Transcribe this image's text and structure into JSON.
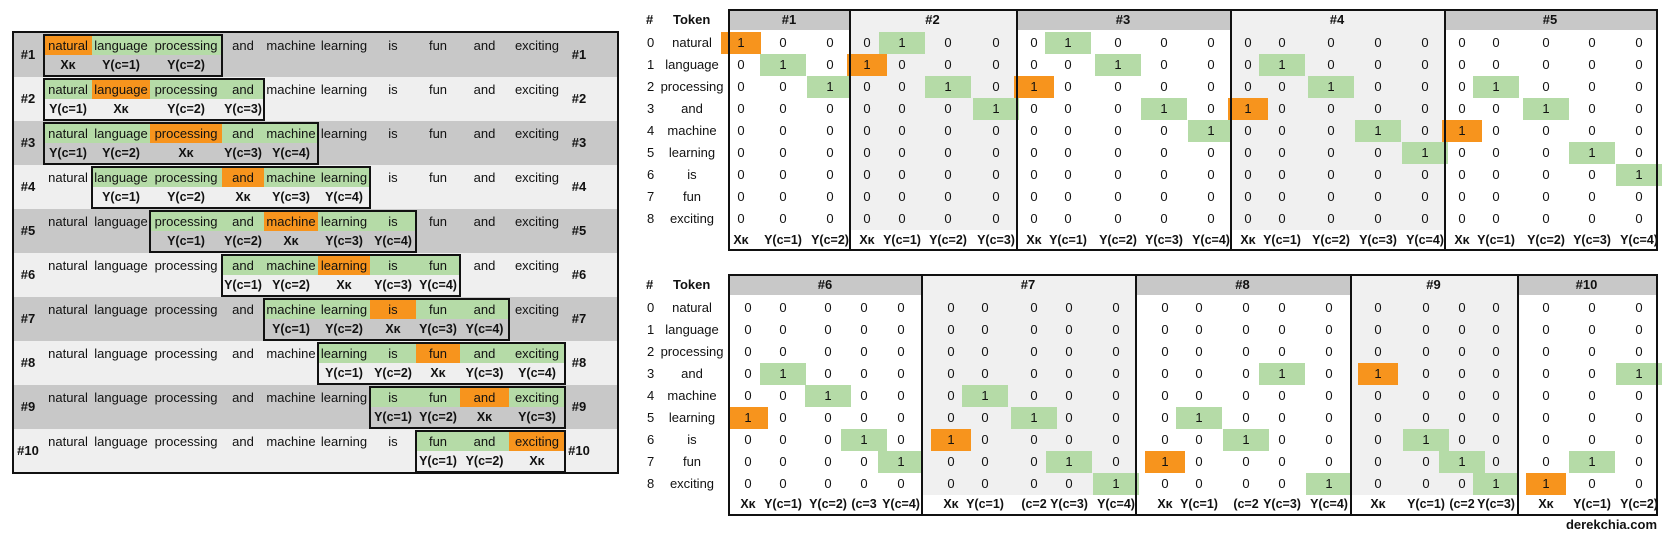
{
  "sentence": [
    "natural",
    "language",
    "processing",
    "and",
    "machine",
    "learning",
    "is",
    "fun",
    "and",
    "exciting"
  ],
  "windows": [
    {
      "id": "#1",
      "target": 0,
      "context": [
        1,
        2
      ],
      "labels": [
        "Xκ",
        "Y(c=1)",
        "Y(c=2)"
      ]
    },
    {
      "id": "#2",
      "target": 1,
      "context": [
        0,
        2,
        3
      ],
      "labels": [
        "Y(c=1)",
        "Xκ",
        "Y(c=2)",
        "Y(c=3)"
      ]
    },
    {
      "id": "#3",
      "target": 2,
      "context": [
        0,
        1,
        3,
        4
      ],
      "labels": [
        "Y(c=1)",
        "Y(c=2)",
        "Xκ",
        "Y(c=3)",
        "Y(c=4)"
      ]
    },
    {
      "id": "#4",
      "target": 3,
      "context": [
        1,
        2,
        4,
        5
      ],
      "labels": [
        "Y(c=1)",
        "Y(c=2)",
        "Xκ",
        "Y(c=3)",
        "Y(c=4)"
      ]
    },
    {
      "id": "#5",
      "target": 4,
      "context": [
        2,
        3,
        5,
        6
      ],
      "labels": [
        "Y(c=1)",
        "Y(c=2)",
        "Xκ",
        "Y(c=3)",
        "Y(c=4)"
      ]
    },
    {
      "id": "#6",
      "target": 5,
      "context": [
        3,
        4,
        6,
        7
      ],
      "labels": [
        "Y(c=1)",
        "Y(c=2)",
        "Xκ",
        "Y(c=3)",
        "Y(c=4)"
      ]
    },
    {
      "id": "#7",
      "target": 6,
      "context": [
        4,
        5,
        7,
        8
      ],
      "labels": [
        "Y(c=1)",
        "Y(c=2)",
        "Xκ",
        "Y(c=3)",
        "Y(c=4)"
      ]
    },
    {
      "id": "#8",
      "target": 7,
      "context": [
        5,
        6,
        8,
        9
      ],
      "labels": [
        "Y(c=1)",
        "Y(c=2)",
        "Xκ",
        "Y(c=3)",
        "Y(c=4)"
      ]
    },
    {
      "id": "#9",
      "target": 8,
      "context": [
        6,
        7,
        9
      ],
      "labels": [
        "Y(c=1)",
        "Y(c=2)",
        "Xκ",
        "Y(c=3)"
      ]
    },
    {
      "id": "#10",
      "target": 9,
      "context": [
        7,
        8
      ],
      "labels": [
        "Y(c=1)",
        "Y(c=2)",
        "Xκ"
      ]
    }
  ],
  "vocab": [
    "natural",
    "language",
    "processing",
    "and",
    "machine",
    "learning",
    "is",
    "fun",
    "exciting"
  ],
  "vocab_index": [
    "0",
    "1",
    "2",
    "3",
    "4",
    "5",
    "6",
    "7",
    "8"
  ],
  "matrix_headers": {
    "index": "#",
    "token": "Token"
  },
  "matrices": [
    {
      "id": "#1",
      "hot": [
        0,
        1,
        2
      ],
      "footers": [
        "Xκ",
        "Y(c=1)",
        "Y(c=2)"
      ]
    },
    {
      "id": "#2",
      "hot": [
        1,
        0,
        2,
        3
      ],
      "footers": [
        "Xκ",
        "Y(c=1)",
        "Y(c=2)",
        "Y(c=3)"
      ]
    },
    {
      "id": "#3",
      "hot": [
        2,
        0,
        1,
        3,
        4
      ],
      "footers": [
        "Xκ",
        "Y(c=1)",
        "Y(c=2)",
        "Y(c=3)",
        "Y(c=4)"
      ]
    },
    {
      "id": "#4",
      "hot": [
        3,
        1,
        2,
        4,
        5
      ],
      "footers": [
        "Xκ",
        "Y(c=1)",
        "Y(c=2)",
        "Y(c=3)",
        "Y(c=4)"
      ]
    },
    {
      "id": "#5",
      "hot": [
        4,
        2,
        3,
        5,
        6
      ],
      "footers": [
        "Xκ",
        "Y(c=1)",
        "Y(c=2)",
        "Y(c=3)",
        "Y(c=4)"
      ]
    },
    {
      "id": "#6",
      "hot": [
        5,
        3,
        4,
        6,
        7
      ],
      "footers": [
        "Xκ",
        "Y(c=1)",
        "Y(c=2)",
        "(c=3",
        "Y(c=4)"
      ]
    },
    {
      "id": "#7",
      "hot": [
        6,
        4,
        5,
        7,
        8
      ],
      "footers": [
        "Xκ",
        "Y(c=1)",
        "(c=2",
        "Y(c=3)",
        "Y(c=4)"
      ]
    },
    {
      "id": "#8",
      "hot": [
        7,
        5,
        6,
        3,
        8
      ],
      "footers": [
        "Xκ",
        "Y(c=1)",
        "(c=2",
        "Y(c=3)",
        "Y(c=4)"
      ]
    },
    {
      "id": "#9",
      "hot": [
        3,
        6,
        7,
        8
      ],
      "footers": [
        "Xκ",
        "Y(c=1)",
        "(c=2",
        "Y(c=3)"
      ]
    },
    {
      "id": "#10",
      "hot": [
        8,
        7,
        3
      ],
      "footers": [
        "Xκ",
        "Y(c=1)",
        "Y(c=2)"
      ]
    }
  ],
  "credit": "derekchia.com",
  "colors": {
    "target": "#f7941d",
    "context": "#b5dba7",
    "row_dark": "#c8c8c8",
    "row_light": "#efefef"
  }
}
